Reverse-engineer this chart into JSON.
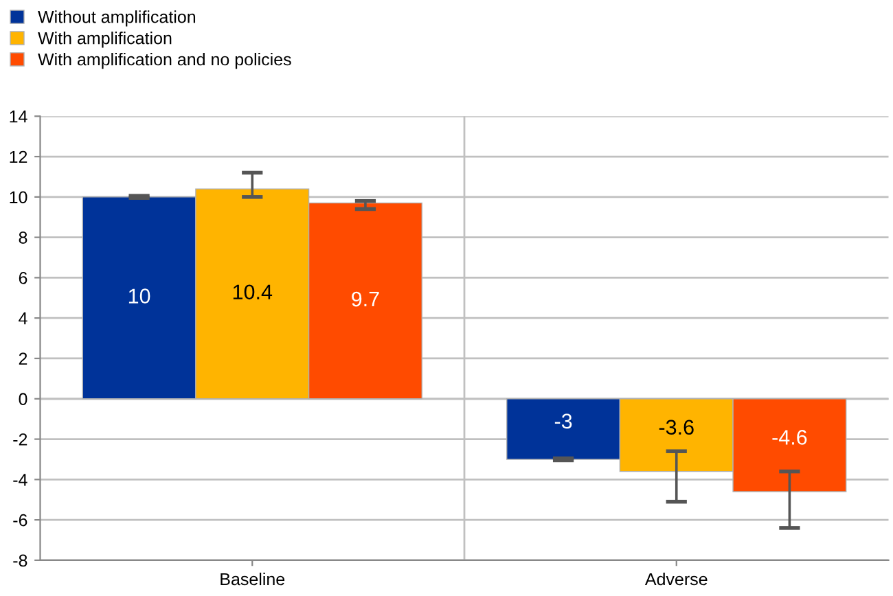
{
  "chart_data": {
    "type": "bar",
    "categories": [
      "Baseline",
      "Adverse"
    ],
    "series": [
      {
        "name": "Without amplification",
        "color": "#003399",
        "values": [
          10,
          -3
        ],
        "errors": [
          [
            9.95,
            10.05
          ],
          [
            -3.05,
            -2.95
          ]
        ]
      },
      {
        "name": "With amplification",
        "color": "#ffb400",
        "values": [
          10.4,
          -3.6
        ],
        "errors": [
          [
            10.0,
            11.2
          ],
          [
            -5.1,
            -2.6
          ]
        ]
      },
      {
        "name": "With amplification and no policies",
        "color": "#ff4b00",
        "values": [
          9.7,
          -4.6
        ],
        "errors": [
          [
            9.4,
            9.8
          ],
          [
            -6.4,
            -3.6
          ]
        ]
      }
    ],
    "ylim": [
      -8,
      14
    ],
    "yticks": [
      -8,
      -6,
      -4,
      -2,
      0,
      2,
      4,
      6,
      8,
      10,
      12,
      14
    ],
    "grid": true,
    "legend": "top left",
    "data_labels": true
  }
}
